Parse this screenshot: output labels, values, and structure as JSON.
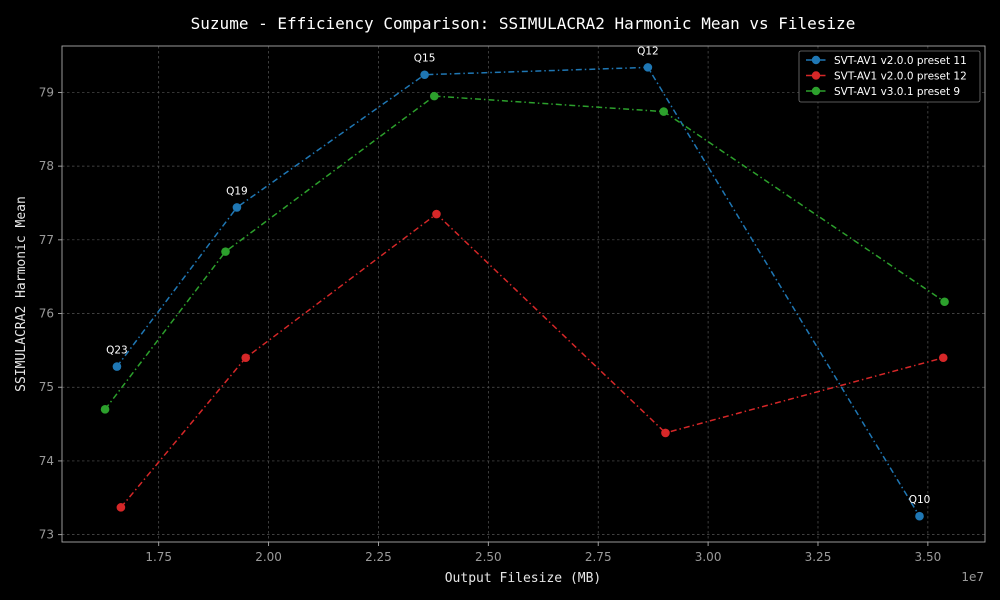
{
  "chart_data": {
    "type": "line",
    "title": "Suzume - Efficiency Comparison: SSIMULACRA2 Harmonic Mean vs Filesize",
    "xlabel": "Output Filesize (MB)",
    "ylabel": "SSIMULACRA2 Harmonic Mean",
    "x_offset_label": "1e7",
    "xlim": [
      1.53,
      3.63
    ],
    "ylim": [
      72.9,
      79.63
    ],
    "xticks": [
      1.75,
      2.0,
      2.25,
      2.5,
      2.75,
      3.0,
      3.25,
      3.5
    ],
    "xtick_labels": [
      "1.75",
      "2.00",
      "2.25",
      "2.50",
      "2.75",
      "3.00",
      "3.25",
      "3.50"
    ],
    "yticks": [
      73,
      74,
      75,
      76,
      77,
      78,
      79
    ],
    "ytick_labels": [
      "73",
      "74",
      "75",
      "76",
      "77",
      "78",
      "79"
    ],
    "grid": true,
    "legend_position": "top-right",
    "series": [
      {
        "name": "SVT-AV1 v2.0.0 preset 11",
        "color": "#1f77b4",
        "x": [
          1.655,
          1.928,
          2.355,
          2.863,
          3.481
        ],
        "y": [
          75.28,
          77.44,
          79.24,
          79.34,
          73.25
        ]
      },
      {
        "name": "SVT-AV1 v2.0.0 preset 12",
        "color": "#d62728",
        "x": [
          1.664,
          1.948,
          2.382,
          2.903,
          3.535
        ],
        "y": [
          73.37,
          75.4,
          77.35,
          74.38,
          75.4
        ]
      },
      {
        "name": "SVT-AV1 v3.0.1 preset 9",
        "color": "#2ca02c",
        "x": [
          1.628,
          1.902,
          2.377,
          2.899,
          3.538
        ],
        "y": [
          74.7,
          76.84,
          78.95,
          78.74,
          76.16
        ]
      }
    ],
    "annotations": [
      {
        "text": "Q23",
        "x": 1.655,
        "y": 75.28
      },
      {
        "text": "Q19",
        "x": 1.928,
        "y": 77.44
      },
      {
        "text": "Q15",
        "x": 2.355,
        "y": 79.24
      },
      {
        "text": "Q12",
        "x": 2.863,
        "y": 79.34
      },
      {
        "text": "Q10",
        "x": 3.481,
        "y": 73.25
      }
    ]
  },
  "colors": {
    "background": "#000000",
    "grid": "#555555",
    "spine": "#aaaaaa",
    "legend_border": "#777777"
  }
}
